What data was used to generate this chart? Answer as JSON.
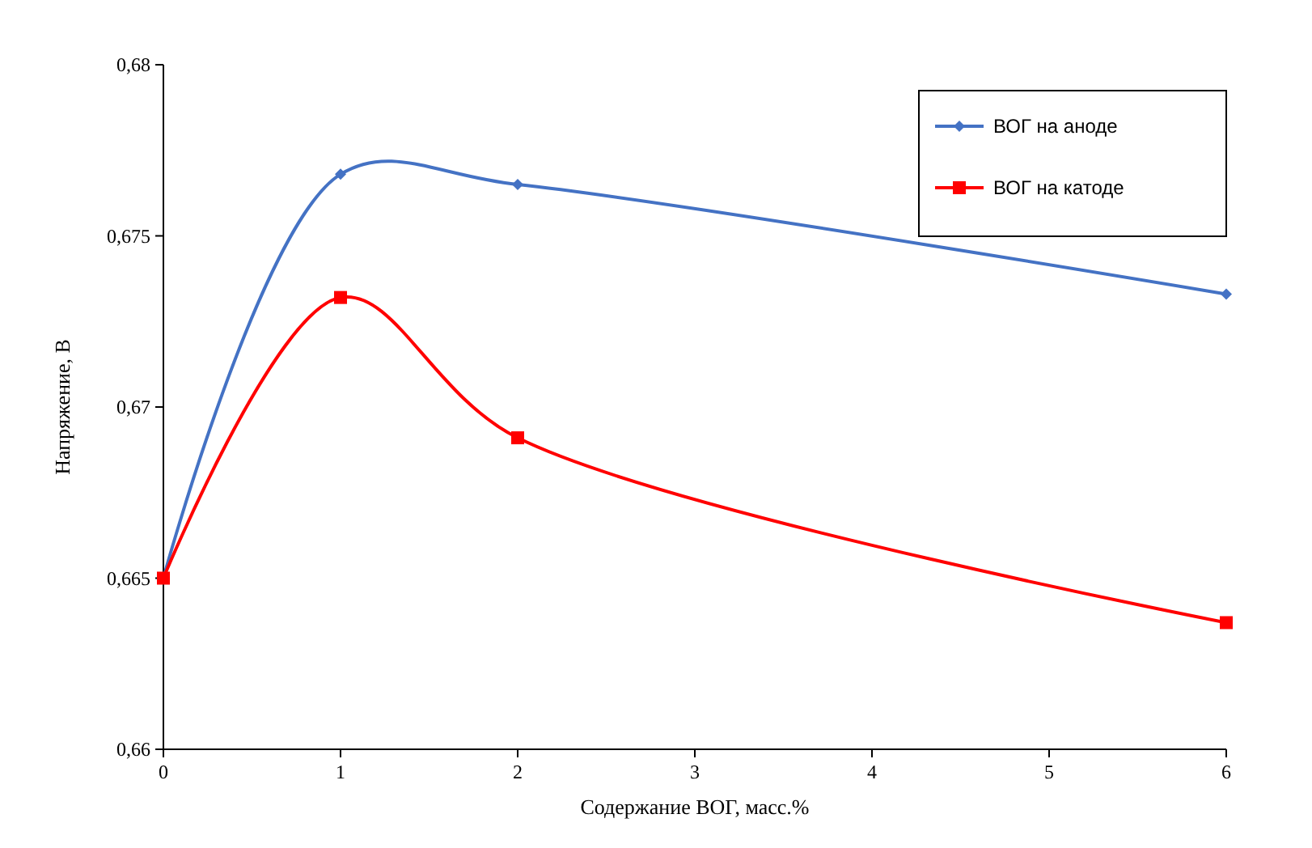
{
  "chart_data": {
    "type": "line",
    "xlabel": "Содержание ВОГ, масс.%",
    "ylabel": "Напряжение, В",
    "x": [
      0,
      1,
      2,
      6
    ],
    "xlim": [
      0,
      6
    ],
    "xticks": [
      0,
      1,
      2,
      3,
      4,
      5,
      6
    ],
    "ylim": [
      0.66,
      0.68
    ],
    "yticks": [
      {
        "value": 0.66,
        "label": "0,66"
      },
      {
        "value": 0.665,
        "label": "0,665"
      },
      {
        "value": 0.67,
        "label": "0,67"
      },
      {
        "value": 0.675,
        "label": "0,675"
      },
      {
        "value": 0.68,
        "label": "0,68"
      }
    ],
    "series": [
      {
        "name": "ВОГ на аноде",
        "color": "#4472c4",
        "marker": "diamond",
        "values": [
          0.665,
          0.6768,
          0.6765,
          0.6733
        ]
      },
      {
        "name": "ВОГ на катоде",
        "color": "#ff0000",
        "marker": "square",
        "values": [
          0.665,
          0.6732,
          0.6691,
          0.6637
        ]
      }
    ],
    "legend": "top right",
    "grid": false
  }
}
